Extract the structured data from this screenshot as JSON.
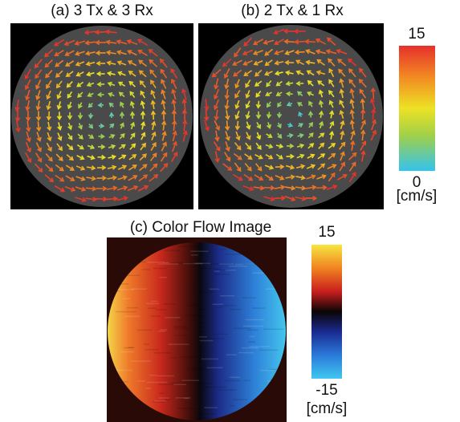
{
  "panels": [
    {
      "title": "(a) 3 Tx & 3 Rx"
    },
    {
      "title": "(b) 2 Tx & 1 Rx"
    },
    {
      "title": "(c) Color Flow Image"
    }
  ],
  "colorbars": [
    {
      "top": "15",
      "bottom": "0",
      "unit": "[cm/s]"
    },
    {
      "top": "15",
      "bottom": "-15",
      "unit": "[cm/s]"
    }
  ]
}
